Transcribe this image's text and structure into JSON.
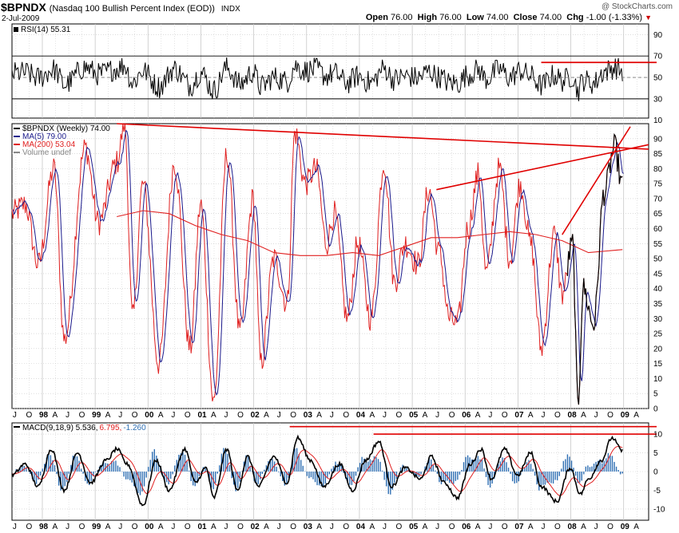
{
  "header": {
    "symbol": "$BPNDX",
    "description": "(Nasdaq 100 Bullish Percent Index (EOD))",
    "exchange": "INDX",
    "date": "2-Jul-2009",
    "watermark": "@ StockCharts.com",
    "quote": {
      "open_label": "Open",
      "open": "76.00",
      "high_label": "High",
      "high": "76.00",
      "low_label": "Low",
      "low": "74.00",
      "close_label": "Close",
      "close": "74.00",
      "chg_label": "Chg",
      "chg": "-1.00 (-1.33%)"
    }
  },
  "colors": {
    "price": "#000000",
    "ma5": "#1a1a8c",
    "ma200": "#e02020",
    "trendline": "#e00000",
    "histogram": "#2f6fb3",
    "grid": "#c8c8c8",
    "rsi_fill": "#2e7d32"
  },
  "chart_data": [
    {
      "type": "line",
      "title": "RSI(14)",
      "label_text": "RSI(14) 55.31",
      "current": 55.31,
      "ylim": [
        12,
        100
      ],
      "yticks": [
        "90",
        "70",
        "50",
        "30",
        "10"
      ],
      "reference_lines": [
        70,
        50,
        30
      ],
      "resistance_level": 64
    },
    {
      "type": "line",
      "title": "$BPNDX (Weekly)",
      "ylim": [
        0,
        95
      ],
      "yticks": [
        "90",
        "85",
        "80",
        "75",
        "70",
        "65",
        "60",
        "55",
        "50",
        "45",
        "40",
        "35",
        "30",
        "25",
        "20",
        "15",
        "10",
        "5",
        "0"
      ],
      "legend": [
        {
          "name": "$BPNDX (Weekly) 74.00",
          "color": "#000000"
        },
        {
          "name": "MA(5) 79.00",
          "color": "#1a1a8c"
        },
        {
          "name": "MA(200) 53.04",
          "color": "#e02020"
        },
        {
          "name": "Volume undef",
          "color": "#888888"
        }
      ],
      "key_points": [
        {
          "t": 0.0,
          "v": 65
        },
        {
          "t": 0.5,
          "v": 68
        },
        {
          "t": 1.0,
          "v": 48
        },
        {
          "t": 1.6,
          "v": 80
        },
        {
          "t": 2.0,
          "v": 23
        },
        {
          "t": 2.8,
          "v": 87
        },
        {
          "t": 3.3,
          "v": 62
        },
        {
          "t": 4.0,
          "v": 82
        },
        {
          "t": 4.3,
          "v": 95
        },
        {
          "t": 4.6,
          "v": 30
        },
        {
          "t": 5.0,
          "v": 75
        },
        {
          "t": 5.6,
          "v": 15
        },
        {
          "t": 6.2,
          "v": 82
        },
        {
          "t": 6.8,
          "v": 20
        },
        {
          "t": 7.2,
          "v": 68
        },
        {
          "t": 7.7,
          "v": 2
        },
        {
          "t": 8.2,
          "v": 85
        },
        {
          "t": 8.7,
          "v": 25
        },
        {
          "t": 9.2,
          "v": 70
        },
        {
          "t": 9.5,
          "v": 15
        },
        {
          "t": 10.0,
          "v": 50
        },
        {
          "t": 10.5,
          "v": 35
        },
        {
          "t": 10.8,
          "v": 92
        },
        {
          "t": 11.2,
          "v": 75
        },
        {
          "t": 11.6,
          "v": 80
        },
        {
          "t": 12.0,
          "v": 55
        },
        {
          "t": 12.3,
          "v": 65
        },
        {
          "t": 12.8,
          "v": 30
        },
        {
          "t": 13.2,
          "v": 55
        },
        {
          "t": 13.7,
          "v": 30
        },
        {
          "t": 14.2,
          "v": 82
        },
        {
          "t": 14.6,
          "v": 42
        },
        {
          "t": 15.0,
          "v": 55
        },
        {
          "t": 15.5,
          "v": 48
        },
        {
          "t": 15.9,
          "v": 73
        },
        {
          "t": 16.3,
          "v": 52
        },
        {
          "t": 16.7,
          "v": 30
        },
        {
          "t": 17.0,
          "v": 28
        },
        {
          "t": 17.4,
          "v": 60
        },
        {
          "t": 17.8,
          "v": 78
        },
        {
          "t": 18.1,
          "v": 45
        },
        {
          "t": 18.6,
          "v": 80
        },
        {
          "t": 19.0,
          "v": 50
        },
        {
          "t": 19.4,
          "v": 75
        },
        {
          "t": 19.8,
          "v": 55
        },
        {
          "t": 20.2,
          "v": 20
        },
        {
          "t": 20.7,
          "v": 58
        },
        {
          "t": 21.0,
          "v": 38
        },
        {
          "t": 21.4,
          "v": 55
        },
        {
          "t": 21.6,
          "v": 1
        },
        {
          "t": 21.8,
          "v": 40
        },
        {
          "t": 22.2,
          "v": 28
        },
        {
          "t": 22.6,
          "v": 72
        },
        {
          "t": 23.0,
          "v": 87
        },
        {
          "t": 23.3,
          "v": 74
        }
      ],
      "ma200_points": [
        {
          "t": 4.0,
          "v": 64
        },
        {
          "t": 5.0,
          "v": 66
        },
        {
          "t": 6.0,
          "v": 65
        },
        {
          "t": 7.0,
          "v": 61
        },
        {
          "t": 8.0,
          "v": 58
        },
        {
          "t": 9.0,
          "v": 56
        },
        {
          "t": 10.0,
          "v": 52
        },
        {
          "t": 11.0,
          "v": 51
        },
        {
          "t": 12.0,
          "v": 51
        },
        {
          "t": 13.0,
          "v": 52
        },
        {
          "t": 14.0,
          "v": 51
        },
        {
          "t": 15.0,
          "v": 54
        },
        {
          "t": 16.0,
          "v": 57
        },
        {
          "t": 17.0,
          "v": 57
        },
        {
          "t": 18.0,
          "v": 58
        },
        {
          "t": 19.0,
          "v": 59
        },
        {
          "t": 20.0,
          "v": 58
        },
        {
          "t": 21.0,
          "v": 56
        },
        {
          "t": 22.0,
          "v": 52
        },
        {
          "t": 23.3,
          "v": 53
        }
      ],
      "trendlines": [
        {
          "from": {
            "t": 4.0,
            "v": 95
          },
          "to": {
            "t": 24.3,
            "v": 86.5
          }
        },
        {
          "from": {
            "t": 16.2,
            "v": 73
          },
          "to": {
            "t": 24.3,
            "v": 88
          }
        },
        {
          "from": {
            "t": 21.0,
            "v": 58
          },
          "to": {
            "t": 23.6,
            "v": 94
          }
        }
      ]
    },
    {
      "type": "line",
      "title": "MACD(9,18,9)",
      "macd_value": "5.536",
      "signal_value": "6.795",
      "histogram_value": "-1.260",
      "ylim": [
        -13,
        13
      ],
      "yticks": [
        "10",
        "5",
        "0",
        "-5",
        "-10"
      ],
      "key_points": [
        {
          "t": 0.0,
          "v": -1
        },
        {
          "t": 0.5,
          "v": 2
        },
        {
          "t": 1.0,
          "v": -4
        },
        {
          "t": 1.5,
          "v": 6
        },
        {
          "t": 2.0,
          "v": -5
        },
        {
          "t": 2.5,
          "v": 5
        },
        {
          "t": 3.0,
          "v": -3
        },
        {
          "t": 3.6,
          "v": 3
        },
        {
          "t": 4.0,
          "v": 6
        },
        {
          "t": 4.4,
          "v": 2
        },
        {
          "t": 5.0,
          "v": -9
        },
        {
          "t": 5.5,
          "v": 3
        },
        {
          "t": 6.0,
          "v": -5
        },
        {
          "t": 6.6,
          "v": 6
        },
        {
          "t": 7.0,
          "v": -3
        },
        {
          "t": 7.4,
          "v": 1
        },
        {
          "t": 7.7,
          "v": -7
        },
        {
          "t": 8.2,
          "v": 6
        },
        {
          "t": 8.6,
          "v": -5
        },
        {
          "t": 9.0,
          "v": 4
        },
        {
          "t": 9.4,
          "v": -4
        },
        {
          "t": 10.0,
          "v": 4
        },
        {
          "t": 10.5,
          "v": -3
        },
        {
          "t": 10.9,
          "v": 9
        },
        {
          "t": 11.4,
          "v": 3
        },
        {
          "t": 11.9,
          "v": -4
        },
        {
          "t": 12.5,
          "v": 2
        },
        {
          "t": 13.0,
          "v": -5
        },
        {
          "t": 13.5,
          "v": 3
        },
        {
          "t": 14.0,
          "v": 8
        },
        {
          "t": 14.5,
          "v": -4
        },
        {
          "t": 15.0,
          "v": 1
        },
        {
          "t": 15.6,
          "v": -2
        },
        {
          "t": 16.0,
          "v": 4
        },
        {
          "t": 16.5,
          "v": -3
        },
        {
          "t": 17.0,
          "v": -7
        },
        {
          "t": 17.5,
          "v": 2
        },
        {
          "t": 17.9,
          "v": 6
        },
        {
          "t": 18.3,
          "v": -2
        },
        {
          "t": 18.8,
          "v": 6
        },
        {
          "t": 19.3,
          "v": -1
        },
        {
          "t": 19.8,
          "v": 5
        },
        {
          "t": 20.2,
          "v": -4
        },
        {
          "t": 20.8,
          "v": -8
        },
        {
          "t": 21.3,
          "v": 1
        },
        {
          "t": 21.7,
          "v": -6
        },
        {
          "t": 22.0,
          "v": -2
        },
        {
          "t": 22.5,
          "v": 3
        },
        {
          "t": 22.9,
          "v": 9
        },
        {
          "t": 23.3,
          "v": 5.5
        }
      ],
      "resistance_levels": [
        12,
        10
      ]
    }
  ],
  "x_axis": {
    "labels": [
      "J",
      "O",
      "98",
      "A",
      "J",
      "O",
      "99",
      "A",
      "J",
      "O",
      "00",
      "A",
      "J",
      "O",
      "01",
      "A",
      "J",
      "O",
      "02",
      "A",
      "J",
      "O",
      "03",
      "A",
      "J",
      "O",
      "04",
      "A",
      "J",
      "O",
      "05",
      "A",
      "J",
      "O",
      "06",
      "A",
      "J",
      "O",
      "07",
      "A",
      "J",
      "O",
      "08",
      "A",
      "J",
      "O",
      "09",
      "A"
    ],
    "year_labels": [
      "98",
      "99",
      "00",
      "01",
      "02",
      "03",
      "04",
      "05",
      "06",
      "07",
      "08",
      "09"
    ]
  }
}
